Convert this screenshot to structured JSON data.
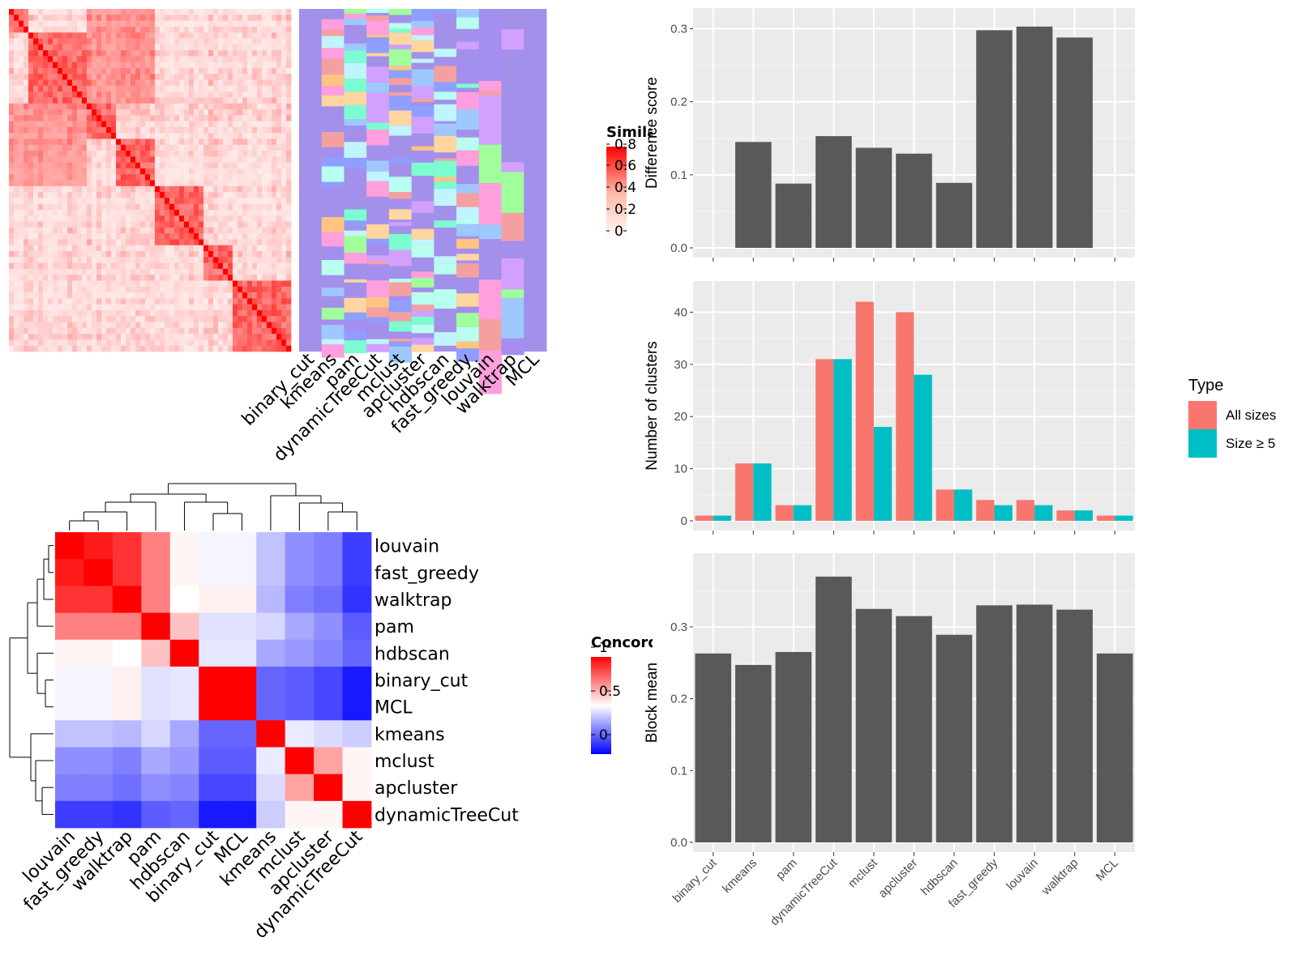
{
  "methods_sim": [
    "binary_cut",
    "kmeans",
    "pam",
    "dynamicTreeCut",
    "mclust",
    "apcluster",
    "hdbscan",
    "fast_greedy",
    "louvain",
    "walktrap",
    "MCL"
  ],
  "similarity_legend": {
    "title": "Similarity",
    "labels": [
      "0.8",
      "0.6",
      "0.4",
      "0.2",
      "0"
    ]
  },
  "concordance_legend": {
    "title": "Concordance",
    "labels": [
      "1",
      "0.5",
      "0"
    ]
  },
  "concordance_heatmap": {
    "order": [
      "louvain",
      "fast_greedy",
      "walktrap",
      "pam",
      "hdbscan",
      "binary_cut",
      "MCL",
      "kmeans",
      "mclust",
      "apcluster",
      "dynamicTreeCut"
    ],
    "matrix": [
      [
        1.0,
        0.95,
        0.9,
        0.75,
        0.52,
        0.48,
        0.48,
        0.38,
        0.28,
        0.25,
        0.12
      ],
      [
        0.95,
        1.0,
        0.9,
        0.75,
        0.52,
        0.48,
        0.48,
        0.38,
        0.28,
        0.25,
        0.12
      ],
      [
        0.9,
        0.9,
        1.0,
        0.75,
        0.5,
        0.53,
        0.53,
        0.36,
        0.25,
        0.22,
        0.1
      ],
      [
        0.75,
        0.75,
        0.75,
        1.0,
        0.62,
        0.44,
        0.44,
        0.42,
        0.33,
        0.28,
        0.18
      ],
      [
        0.52,
        0.52,
        0.5,
        0.62,
        1.0,
        0.45,
        0.45,
        0.33,
        0.3,
        0.26,
        0.2
      ],
      [
        0.48,
        0.48,
        0.53,
        0.44,
        0.45,
        1.0,
        1.0,
        0.2,
        0.18,
        0.14,
        0.05
      ],
      [
        0.48,
        0.48,
        0.53,
        0.44,
        0.45,
        1.0,
        1.0,
        0.2,
        0.18,
        0.14,
        0.05
      ],
      [
        0.38,
        0.38,
        0.36,
        0.42,
        0.33,
        0.2,
        0.2,
        1.0,
        0.46,
        0.43,
        0.4
      ],
      [
        0.28,
        0.28,
        0.25,
        0.33,
        0.3,
        0.18,
        0.18,
        0.46,
        1.0,
        0.68,
        0.52
      ],
      [
        0.25,
        0.25,
        0.22,
        0.28,
        0.26,
        0.14,
        0.14,
        0.43,
        0.68,
        1.0,
        0.52
      ],
      [
        0.12,
        0.12,
        0.1,
        0.18,
        0.2,
        0.05,
        0.05,
        0.4,
        0.52,
        0.52,
        1.0
      ]
    ]
  },
  "chart_data": [
    {
      "type": "bar",
      "categories": [
        "binary_cut",
        "kmeans",
        "pam",
        "dynamicTreeCut",
        "mclust",
        "apcluster",
        "hdbscan",
        "fast_greedy",
        "louvain",
        "walktrap",
        "MCL"
      ],
      "values": [
        0,
        0.145,
        0.088,
        0.153,
        0.137,
        0.129,
        0.089,
        0.298,
        0.303,
        0.288,
        0
      ],
      "ylabel": "Difference score",
      "ylim": [
        0,
        0.315
      ],
      "yticks": [
        "0.0",
        "0.1",
        "0.2",
        "0.3"
      ],
      "grid": true,
      "color": "#595959"
    },
    {
      "type": "bar",
      "categories": [
        "binary_cut",
        "kmeans",
        "pam",
        "dynamicTreeCut",
        "mclust",
        "apcluster",
        "hdbscan",
        "fast_greedy",
        "louvain",
        "walktrap",
        "MCL"
      ],
      "series": [
        {
          "name": "All sizes",
          "values": [
            1,
            11,
            3,
            31,
            42,
            40,
            6,
            4,
            4,
            2,
            1
          ],
          "color": "#F8766D"
        },
        {
          "name": "Size ≥ 5",
          "values": [
            1,
            11,
            3,
            31,
            18,
            28,
            6,
            3,
            3,
            2,
            1
          ],
          "color": "#00BFC4"
        }
      ],
      "ylabel": "Number of clusters",
      "ylim": [
        0,
        44.1
      ],
      "yticks": [
        "0",
        "10",
        "20",
        "30",
        "40"
      ],
      "legend": {
        "title": "Type",
        "position": "right"
      },
      "grid": true
    },
    {
      "type": "bar",
      "categories": [
        "binary_cut",
        "kmeans",
        "pam",
        "dynamicTreeCut",
        "mclust",
        "apcluster",
        "hdbscan",
        "fast_greedy",
        "louvain",
        "walktrap",
        "MCL"
      ],
      "values": [
        0.263,
        0.247,
        0.265,
        0.37,
        0.325,
        0.315,
        0.289,
        0.33,
        0.331,
        0.324,
        0.263
      ],
      "ylabel": "Block mean",
      "ylim": [
        0,
        0.389
      ],
      "yticks": [
        "0.0",
        "0.1",
        "0.2",
        "0.3"
      ],
      "grid": true,
      "color": "#595959"
    }
  ]
}
